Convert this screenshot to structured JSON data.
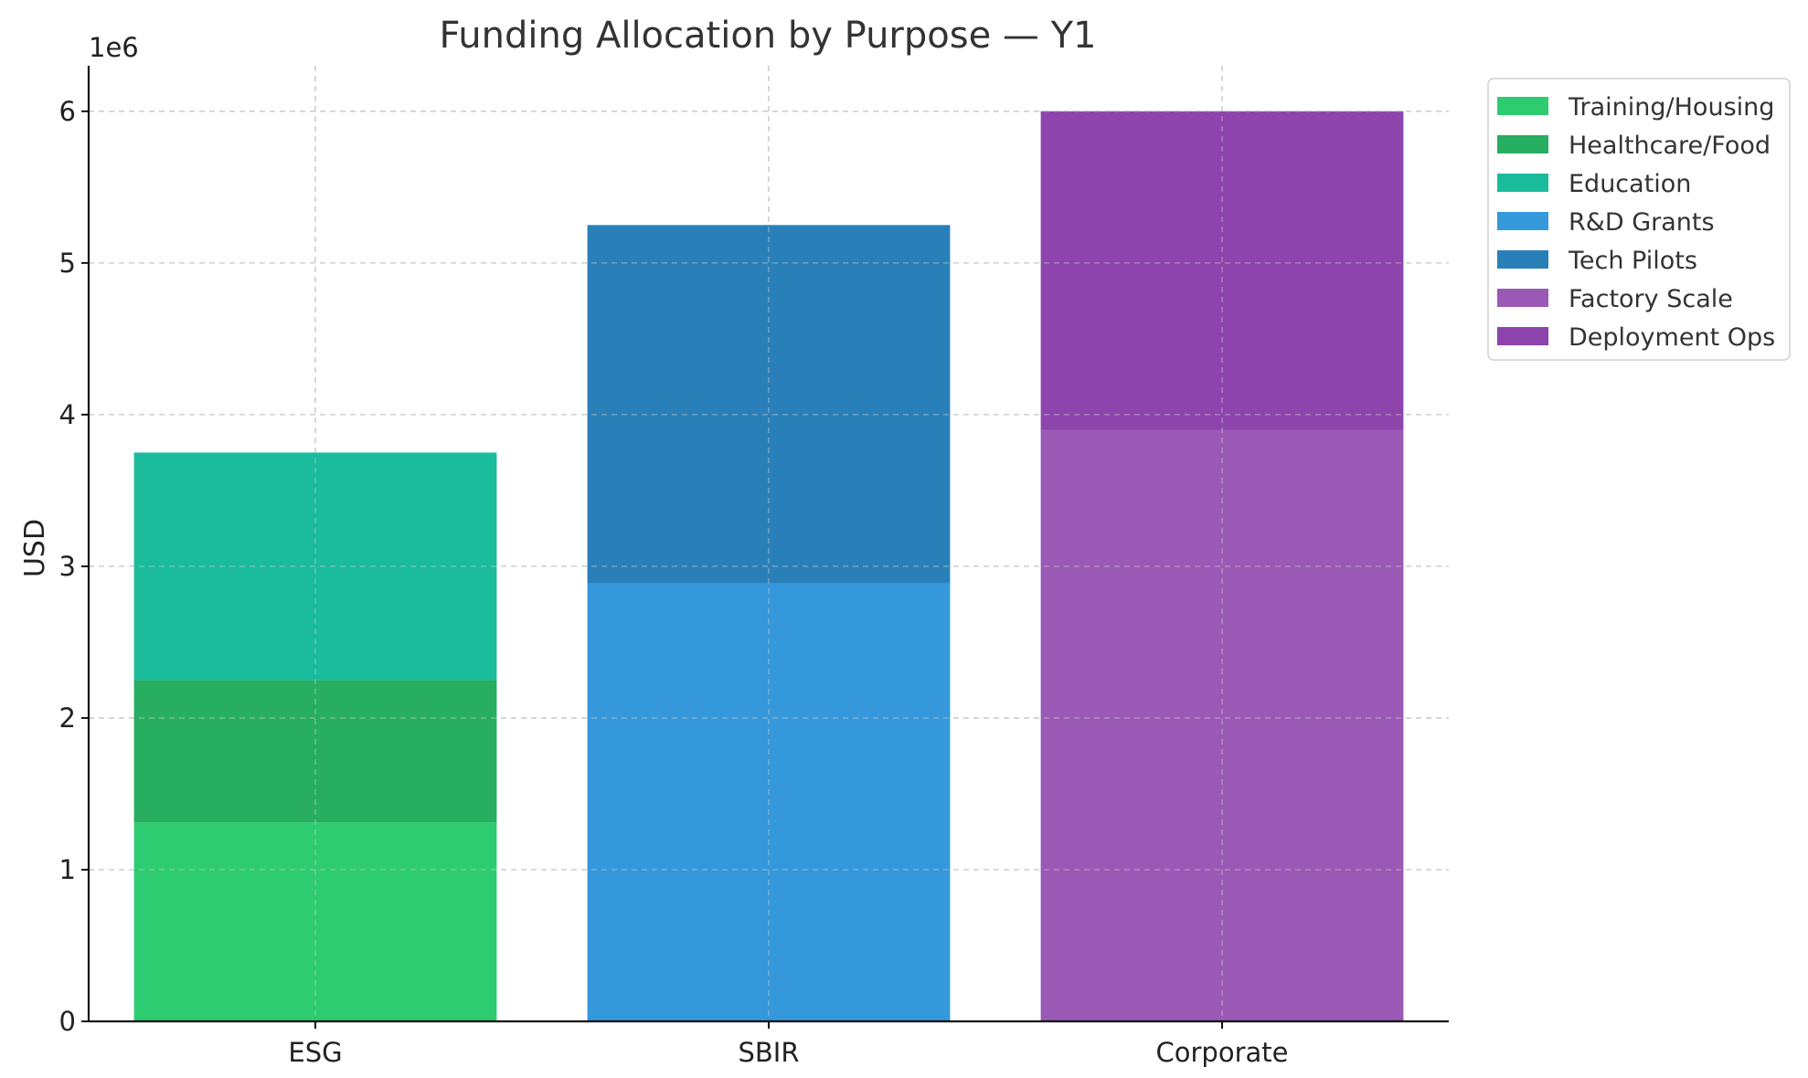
{
  "chart_data": {
    "type": "bar",
    "stacked": true,
    "title": "Funding Allocation by Purpose — Y1",
    "xlabel": "",
    "ylabel": "USD",
    "y_offset_label": "1e6",
    "categories": [
      "ESG",
      "SBIR",
      "Corporate"
    ],
    "ylim": [
      0,
      6300000
    ],
    "yticks": [
      0,
      1,
      2,
      3,
      4,
      5,
      6
    ],
    "grid": true,
    "legend_position": "outside-top-right",
    "series": [
      {
        "name": "Training/Housing",
        "color": "#2ecc71",
        "values": [
          1312500,
          0,
          0
        ]
      },
      {
        "name": "Healthcare/Food",
        "color": "#27ae60",
        "values": [
          937500,
          0,
          0
        ]
      },
      {
        "name": "Education",
        "color": "#1abc9c",
        "values": [
          1500000,
          0,
          0
        ]
      },
      {
        "name": "R&D Grants",
        "color": "#3498db",
        "values": [
          0,
          2887500,
          0
        ]
      },
      {
        "name": "Tech Pilots",
        "color": "#2980b9",
        "values": [
          0,
          2362500,
          0
        ]
      },
      {
        "name": "Factory Scale",
        "color": "#9b59b6",
        "values": [
          0,
          0,
          3900000
        ]
      },
      {
        "name": "Deployment Ops",
        "color": "#8e44ad",
        "values": [
          0,
          0,
          2100000
        ]
      }
    ]
  }
}
